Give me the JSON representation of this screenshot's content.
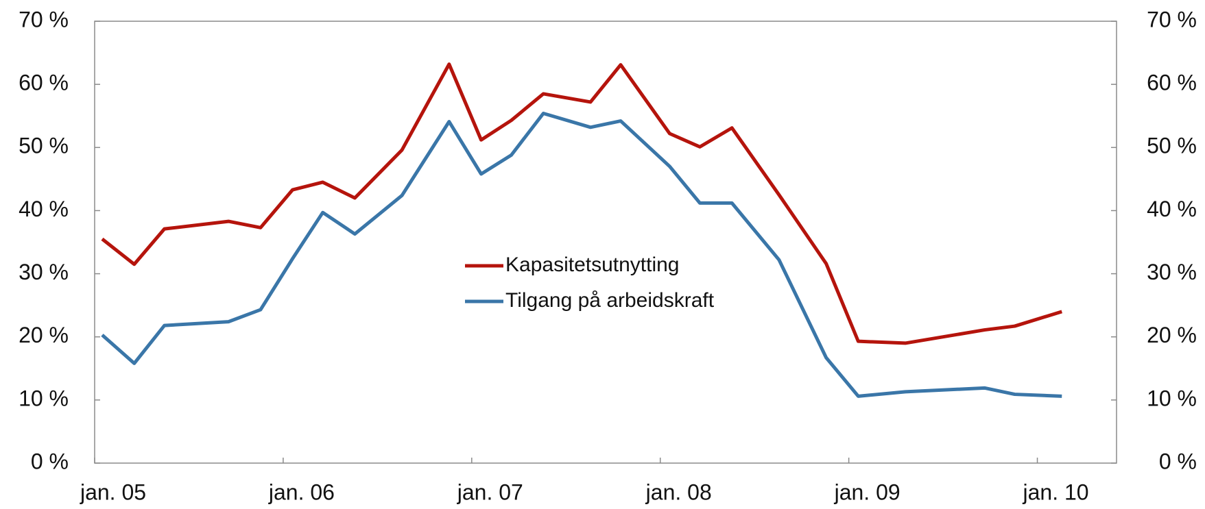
{
  "chart_data": {
    "type": "line",
    "x": [
      2005.04,
      2005.21,
      2005.37,
      2005.71,
      2005.88,
      2006.05,
      2006.21,
      2006.38,
      2006.63,
      2006.88,
      2007.05,
      2007.21,
      2007.38,
      2007.63,
      2007.79,
      2008.05,
      2008.21,
      2008.38,
      2008.63,
      2008.88,
      2009.05,
      2009.3,
      2009.72,
      2009.88,
      2010.13
    ],
    "series": [
      {
        "name": "Kapasitetsutnytting",
        "color": "#b5140c",
        "values": [
          35.5,
          31.5,
          37.1,
          38.3,
          37.3,
          43.3,
          44.5,
          42.0,
          49.6,
          63.2,
          51.2,
          54.3,
          58.5,
          57.2,
          63.1,
          52.2,
          50.1,
          53.1,
          42.5,
          31.6,
          19.3,
          19.0,
          21.1,
          21.7,
          24.0
        ]
      },
      {
        "name": "Tilgang på arbeidskraft",
        "color": "#3a76a8",
        "values": [
          20.3,
          15.8,
          21.8,
          22.4,
          24.3,
          32.4,
          39.7,
          36.3,
          42.4,
          54.1,
          45.8,
          48.8,
          55.4,
          53.2,
          54.2,
          47.0,
          41.2,
          41.2,
          32.2,
          16.7,
          10.6,
          11.3,
          11.9,
          10.9,
          10.6
        ]
      }
    ],
    "xlim": [
      2005,
      2010.42
    ],
    "xticks": [
      {
        "value": 2005,
        "label": "jan. 05"
      },
      {
        "value": 2006,
        "label": "jan. 06"
      },
      {
        "value": 2007,
        "label": "jan. 07"
      },
      {
        "value": 2008,
        "label": "jan. 08"
      },
      {
        "value": 2009,
        "label": "jan. 09"
      },
      {
        "value": 2010,
        "label": "jan. 10"
      }
    ],
    "ylim": [
      0,
      70
    ],
    "yticks": [
      {
        "value": 0,
        "label": "0 %"
      },
      {
        "value": 10,
        "label": "10 %"
      },
      {
        "value": 20,
        "label": "20 %"
      },
      {
        "value": 30,
        "label": "30 %"
      },
      {
        "value": 40,
        "label": "40 %"
      },
      {
        "value": 50,
        "label": "50 %"
      },
      {
        "value": 60,
        "label": "60 %"
      },
      {
        "value": 70,
        "label": "70 %"
      }
    ],
    "y2lim": [
      0,
      70
    ],
    "y2ticks": [
      {
        "value": 0,
        "label": "0 %"
      },
      {
        "value": 10,
        "label": "10 %"
      },
      {
        "value": 20,
        "label": "20 %"
      },
      {
        "value": 30,
        "label": "30 %"
      },
      {
        "value": 40,
        "label": "40 %"
      },
      {
        "value": 50,
        "label": "50 %"
      },
      {
        "value": 60,
        "label": "60 %"
      },
      {
        "value": 70,
        "label": "70 %"
      }
    ],
    "legend": "center"
  }
}
